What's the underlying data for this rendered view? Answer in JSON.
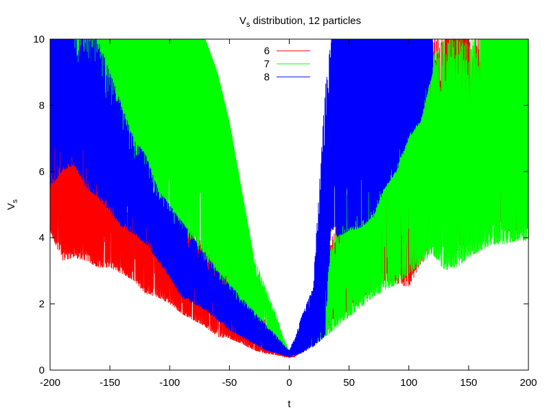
{
  "chart_data": {
    "type": "line",
    "title_main": "V",
    "title_sub": "s",
    "title_rest": " distribution, 12 particles",
    "xlabel": "t",
    "ylabel_main": "V",
    "ylabel_sub": "s",
    "xlim": [
      -200,
      200
    ],
    "ylim": [
      0,
      10
    ],
    "xticks": [
      -200,
      -150,
      -100,
      -50,
      0,
      50,
      100,
      150,
      200
    ],
    "yticks": [
      0,
      2,
      4,
      6,
      8,
      10
    ],
    "grid": false,
    "legend_position": "top-center",
    "series": [
      {
        "name": "6",
        "color": "#ff0000",
        "envelope_x": [
          -200,
          -190,
          -180,
          -170,
          -160,
          -150,
          -140,
          -130,
          -120,
          -110,
          -100,
          -90,
          -80,
          -70,
          -60,
          -50,
          -40,
          -30,
          -20,
          -10,
          -5,
          0,
          5,
          10,
          20,
          30,
          40,
          50,
          60,
          70,
          80,
          90,
          100,
          110,
          120,
          130,
          140,
          150,
          160,
          170,
          180,
          190,
          200
        ],
        "envelope_min": [
          4.2,
          3.3,
          3.4,
          3.3,
          3.1,
          3.1,
          2.9,
          2.7,
          2.3,
          2.2,
          2.0,
          1.7,
          1.5,
          1.3,
          1.0,
          0.95,
          0.8,
          0.6,
          0.5,
          0.45,
          0.4,
          0.38,
          0.4,
          0.55,
          0.8,
          1.1,
          1.5,
          1.8,
          2.1,
          2.5,
          2.7,
          2.6,
          2.5,
          3.2,
          4.0,
          4.5,
          3.6,
          3.8,
          4.8,
          4.4,
          4.2,
          4.2,
          4.3
        ],
        "envelope_max": [
          6.5,
          7.5,
          8.2,
          7.0,
          6.5,
          5.8,
          5.5,
          5.0,
          4.8,
          4.8,
          4.5,
          4.5,
          4.3,
          3.8,
          3.5,
          3.0,
          2.5,
          2.0,
          1.5,
          0.9,
          0.7,
          0.5,
          0.7,
          1.0,
          2.3,
          3.5,
          4.5,
          5.5,
          6.0,
          6.5,
          7.5,
          8.0,
          8.5,
          9.0,
          10.0,
          10.0,
          10.0,
          10.0,
          10.0,
          10.0,
          10.0,
          10.0,
          10.0
        ],
        "dense_bands": [
          [
            130,
            148
          ],
          [
            172,
            200
          ]
        ]
      },
      {
        "name": "7",
        "color": "#00ff00",
        "envelope_x": [
          -200,
          -190,
          -180,
          -170,
          -160,
          -150,
          -140,
          -130,
          -120,
          -110,
          -100,
          -90,
          -80,
          -70,
          -60,
          -50,
          -40,
          -30,
          -20,
          -10,
          -5,
          0,
          5,
          10,
          20,
          30,
          40,
          50,
          60,
          70,
          80,
          90,
          100,
          110,
          120,
          130,
          140,
          150,
          160,
          170,
          180,
          190,
          200
        ],
        "envelope_min": [
          9.5,
          9.0,
          8.5,
          7.5,
          7.0,
          6.2,
          5.8,
          5.3,
          5.0,
          4.8,
          4.5,
          4.2,
          3.8,
          3.3,
          2.8,
          2.3,
          1.8,
          1.5,
          1.2,
          0.8,
          0.6,
          0.4,
          0.45,
          0.55,
          0.8,
          1.0,
          1.3,
          1.6,
          1.9,
          2.2,
          2.4,
          2.6,
          2.9,
          3.2,
          3.5,
          3.0,
          3.1,
          3.4,
          3.6,
          3.8,
          3.8,
          3.9,
          3.9
        ],
        "envelope_max": [
          10,
          10,
          10,
          10,
          10,
          10,
          10,
          10,
          10,
          10,
          10,
          10,
          10,
          10,
          9.0,
          7.5,
          5.5,
          3.5,
          2.5,
          1.6,
          1.0,
          0.6,
          0.8,
          1.3,
          2.2,
          3.2,
          4.3,
          5.5,
          6.2,
          7.0,
          7.5,
          8.0,
          8.5,
          9.0,
          9.5,
          10,
          10,
          10,
          10,
          10,
          10,
          10,
          10
        ],
        "dense_bands": [
          [
            -185,
            -55
          ],
          [
            -60,
            -30
          ],
          [
            160,
            200
          ]
        ]
      },
      {
        "name": "8",
        "color": "#0000ff",
        "envelope_x": [
          -200,
          -190,
          -180,
          -170,
          -160,
          -150,
          -140,
          -130,
          -120,
          -110,
          -100,
          -90,
          -80,
          -70,
          -60,
          -50,
          -40,
          -30,
          -20,
          -10,
          -5,
          0,
          5,
          10,
          20,
          30,
          35,
          40,
          50,
          60,
          70,
          80,
          90,
          100,
          110,
          120
        ],
        "envelope_min": [
          5.5,
          6.0,
          6.2,
          5.5,
          5.2,
          4.8,
          4.3,
          4.1,
          3.8,
          3.3,
          2.8,
          2.2,
          2.0,
          1.8,
          1.5,
          1.2,
          1.0,
          0.8,
          0.6,
          0.5,
          0.45,
          0.4,
          0.45,
          0.5,
          0.7,
          1.0,
          4.3,
          4.0,
          4.2,
          4.3,
          4.6,
          5.5,
          6.0,
          7.0,
          7.5,
          9.0
        ],
        "envelope_max": [
          10,
          10,
          10,
          10,
          10,
          9.0,
          8.0,
          7.0,
          6.5,
          5.5,
          5.0,
          4.5,
          4.0,
          3.5,
          3.0,
          2.6,
          2.2,
          1.8,
          1.4,
          1.0,
          0.8,
          0.6,
          1.0,
          1.6,
          2.5,
          8.5,
          10,
          10,
          10,
          10,
          10,
          10,
          10,
          10,
          10,
          10
        ],
        "dense_bands": [
          [
            -200,
            -180
          ],
          [
            35,
            120
          ]
        ]
      }
    ]
  }
}
